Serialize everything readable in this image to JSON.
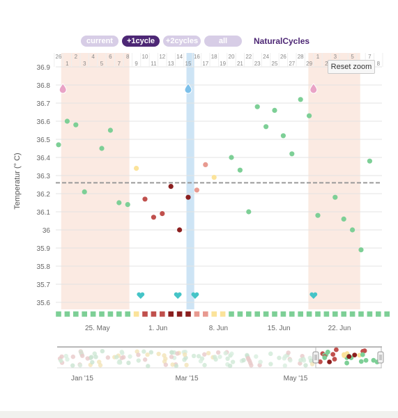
{
  "range_buttons": [
    {
      "label": "current",
      "active": false
    },
    {
      "label": "+1cycle",
      "active": true
    },
    {
      "label": "+2cycles",
      "active": false
    },
    {
      "label": "all",
      "active": false
    }
  ],
  "brand": "NaturalCycles",
  "reset_zoom": "Reset zoom",
  "chart_data": [
    {
      "type": "scatter",
      "ylabel": "Temperatur (° C)",
      "ylim": [
        35.55,
        36.95
      ],
      "yticks": [
        "36.9",
        "36.8",
        "36.7",
        "36.6",
        "36.5",
        "36.4",
        "36.3",
        "36.2",
        "36.1",
        "36",
        "35.9",
        "35.8",
        "35.7",
        "35.6"
      ],
      "cover_line": 36.26,
      "day_range": [
        0,
        38.5
      ],
      "date_row_top": [
        "26",
        "2",
        "4",
        "6",
        "8",
        "10",
        "12",
        "14",
        "16",
        "18",
        "20",
        "22",
        "24",
        "26",
        "28",
        "1",
        "3",
        "5",
        "7"
      ],
      "date_row_bottom": [
        "1",
        "3",
        "5",
        "7",
        "9",
        "11",
        "13",
        "15",
        "17",
        "19",
        "21",
        "23",
        "25",
        "27",
        "29",
        "2",
        "4",
        "6",
        "8"
      ],
      "cycle_day_top": [
        "26",
        "2",
        "4",
        "6",
        "8",
        "10",
        "12",
        "14",
        "16",
        "18",
        "20",
        "22",
        "24",
        "26",
        "28",
        "1",
        "3",
        "5",
        "7"
      ],
      "cycle_day_bottom": [
        "1",
        "3",
        "5",
        "7",
        "9",
        "11",
        "13",
        "15",
        "17",
        "19",
        "21",
        "23",
        "25",
        "27",
        "29",
        "2",
        "4",
        "6",
        "8"
      ],
      "x_tick_labels": [
        {
          "label": "25. May",
          "day": 4.5
        },
        {
          "label": "1. Jun",
          "day": 11.5
        },
        {
          "label": "8. Jun",
          "day": 18.5
        },
        {
          "label": "15. Jun",
          "day": 25.5
        },
        {
          "label": "22. Jun",
          "day": 32.5
        }
      ],
      "period_bands": [
        [
          0.3,
          8.2
        ],
        [
          28.9,
          34.9
        ]
      ],
      "ovulation_band": [
        14.8,
        15.7
      ],
      "points": [
        {
          "day": 0,
          "temp": 36.47,
          "status": "green"
        },
        {
          "day": 1,
          "temp": 36.6,
          "status": "green"
        },
        {
          "day": 2,
          "temp": 36.58,
          "status": "green"
        },
        {
          "day": 3,
          "temp": 36.21,
          "status": "green"
        },
        {
          "day": 5,
          "temp": 36.45,
          "status": "green"
        },
        {
          "day": 6,
          "temp": 36.55,
          "status": "green"
        },
        {
          "day": 7,
          "temp": 36.15,
          "status": "green"
        },
        {
          "day": 8,
          "temp": 36.14,
          "status": "green"
        },
        {
          "day": 9,
          "temp": 36.34,
          "status": "yellow"
        },
        {
          "day": 10,
          "temp": 36.17,
          "status": "red"
        },
        {
          "day": 11,
          "temp": 36.07,
          "status": "red"
        },
        {
          "day": 12,
          "temp": 36.09,
          "status": "red"
        },
        {
          "day": 13,
          "temp": 36.24,
          "status": "darkred"
        },
        {
          "day": 14,
          "temp": 36.0,
          "status": "darkred"
        },
        {
          "day": 15,
          "temp": 36.18,
          "status": "darkred"
        },
        {
          "day": 16,
          "temp": 36.22,
          "status": "pink"
        },
        {
          "day": 17,
          "temp": 36.36,
          "status": "pink"
        },
        {
          "day": 18,
          "temp": 36.29,
          "status": "yellow"
        },
        {
          "day": 20,
          "temp": 36.4,
          "status": "green"
        },
        {
          "day": 21,
          "temp": 36.33,
          "status": "green"
        },
        {
          "day": 22,
          "temp": 36.1,
          "status": "green"
        },
        {
          "day": 23,
          "temp": 36.68,
          "status": "green"
        },
        {
          "day": 24,
          "temp": 36.57,
          "status": "green"
        },
        {
          "day": 25,
          "temp": 36.66,
          "status": "green"
        },
        {
          "day": 26,
          "temp": 36.52,
          "status": "green"
        },
        {
          "day": 27,
          "temp": 36.42,
          "status": "green"
        },
        {
          "day": 28,
          "temp": 36.72,
          "status": "green"
        },
        {
          "day": 29,
          "temp": 36.63,
          "status": "green"
        },
        {
          "day": 30,
          "temp": 36.08,
          "status": "green"
        },
        {
          "day": 32,
          "temp": 36.18,
          "status": "green"
        },
        {
          "day": 33,
          "temp": 36.06,
          "status": "green"
        },
        {
          "day": 34,
          "temp": 36.0,
          "status": "green"
        },
        {
          "day": 35,
          "temp": 35.89,
          "status": "green"
        },
        {
          "day": 36,
          "temp": 36.38,
          "status": "green"
        }
      ],
      "day_strip": [
        "green",
        "green",
        "green",
        "green",
        "green",
        "green",
        "green",
        "green",
        "green",
        "yellow",
        "red",
        "red",
        "red",
        "darkred",
        "darkred",
        "darkred",
        "pink",
        "pink",
        "yellow",
        "yellow",
        "green",
        "green",
        "green",
        "green",
        "green",
        "green",
        "green",
        "green",
        "green",
        "green",
        "green",
        "green",
        "green",
        "green",
        "green",
        "green",
        "green",
        "green",
        "green"
      ],
      "drop_markers": [
        {
          "day": 0.5,
          "color": "#e9a3c6"
        },
        {
          "day": 15,
          "color": "#7cc0ea"
        },
        {
          "day": 29.5,
          "color": "#e9a3c6"
        }
      ],
      "heart_markers": [
        9.5,
        13.8,
        15.8,
        29.5
      ],
      "colors": {
        "green": "#7dcf96",
        "yellow": "#fbe39a",
        "red": "#c0504d",
        "darkred": "#8b1f1f",
        "pink": "#e89a90",
        "period_band": "#fbeae2",
        "ovulation_band": "#cde4f5",
        "cover_line": "#9a9a9a",
        "heart": "#45c4c7",
        "accent": "#4d2775"
      }
    },
    {
      "type": "scatter",
      "role": "navigator",
      "x_labels": [
        "Jan '15",
        "Mar '15",
        "May '15"
      ]
    }
  ]
}
